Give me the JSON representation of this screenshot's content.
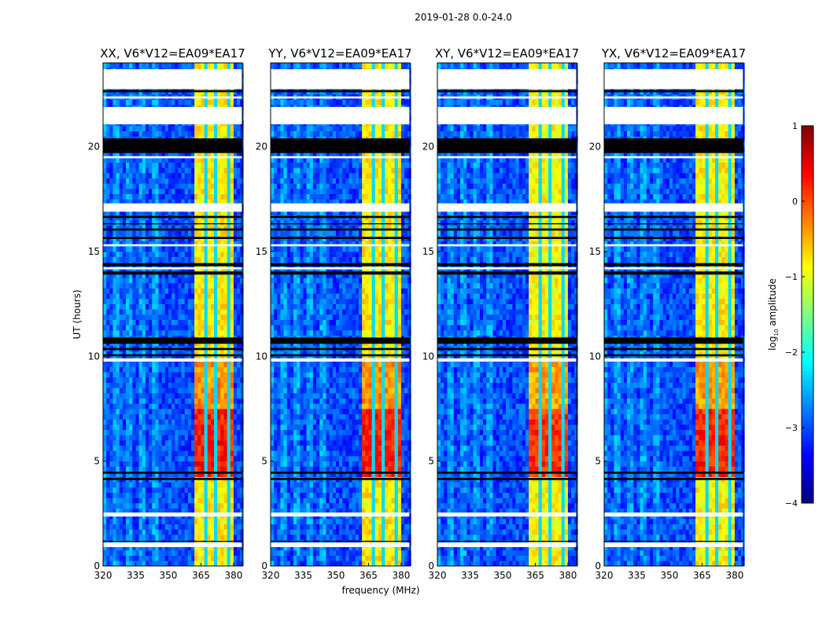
{
  "chart_data": {
    "type": "heatmap",
    "suptitle": "2019-01-28 0.0-24.0",
    "xlabel": "frequency (MHz)",
    "ylabel": "UT (hours)",
    "xlim": [
      320,
      384
    ],
    "ylim": [
      0,
      24
    ],
    "xticks": [
      320,
      335,
      350,
      365,
      380
    ],
    "yticks": [
      0,
      5,
      10,
      15,
      20
    ],
    "colorbar": {
      "label_main": "log",
      "label_sub": "10",
      "label_rest": " amplitude",
      "colormap": "jet",
      "vmin": -4,
      "vmax": 1,
      "ticks": [
        1,
        0,
        -1,
        -2,
        -3,
        -4
      ],
      "tick_labels": [
        "1",
        "0",
        "−1",
        "−2",
        "−3",
        "−4"
      ]
    },
    "model": {
      "background_level": -3.0,
      "rfi_band": {
        "fmin": 361.5,
        "fmax": 380.0,
        "level": -0.8
      },
      "band_gaps_mhz": [
        367.3,
        372.3,
        377.3
      ],
      "strong_interval": {
        "tmin": 4.3,
        "tmax": 7.5,
        "level": 0.25
      },
      "medium_interval": {
        "tmin": 7.5,
        "tmax": 9.8,
        "level": -0.35
      },
      "flagged_white_hours": [
        [
          22.75,
          23.7
        ],
        [
          21.07,
          21.9
        ],
        [
          16.9,
          17.3
        ],
        [
          9.75,
          9.9
        ],
        [
          2.36,
          2.55
        ],
        [
          0.9,
          1.12
        ],
        [
          22.3,
          22.4
        ],
        [
          19.45,
          19.55
        ],
        [
          15.25,
          15.35
        ],
        [
          14.15,
          14.25
        ]
      ],
      "flagged_black_hours": [
        [
          19.7,
          20.4
        ],
        [
          22.6,
          22.7
        ],
        [
          16.6,
          16.7
        ],
        [
          16.3,
          16.35
        ],
        [
          16.0,
          16.1
        ],
        [
          15.6,
          15.7
        ],
        [
          14.3,
          14.45
        ],
        [
          13.9,
          14.05
        ],
        [
          10.6,
          10.9
        ],
        [
          10.3,
          10.4
        ],
        [
          10.0,
          10.1
        ],
        [
          4.4,
          4.5
        ],
        [
          4.1,
          4.2
        ],
        [
          1.15,
          1.2
        ]
      ]
    },
    "panels": [
      {
        "title": "XX, V6*V12=EA09*EA17",
        "scale": 1.0
      },
      {
        "title": "YY, V6*V12=EA09*EA17",
        "scale": 1.0
      },
      {
        "title": "XY, V6*V12=EA09*EA17",
        "scale": 0.85
      },
      {
        "title": "YX, V6*V12=EA09*EA17",
        "scale": 0.95
      }
    ]
  }
}
